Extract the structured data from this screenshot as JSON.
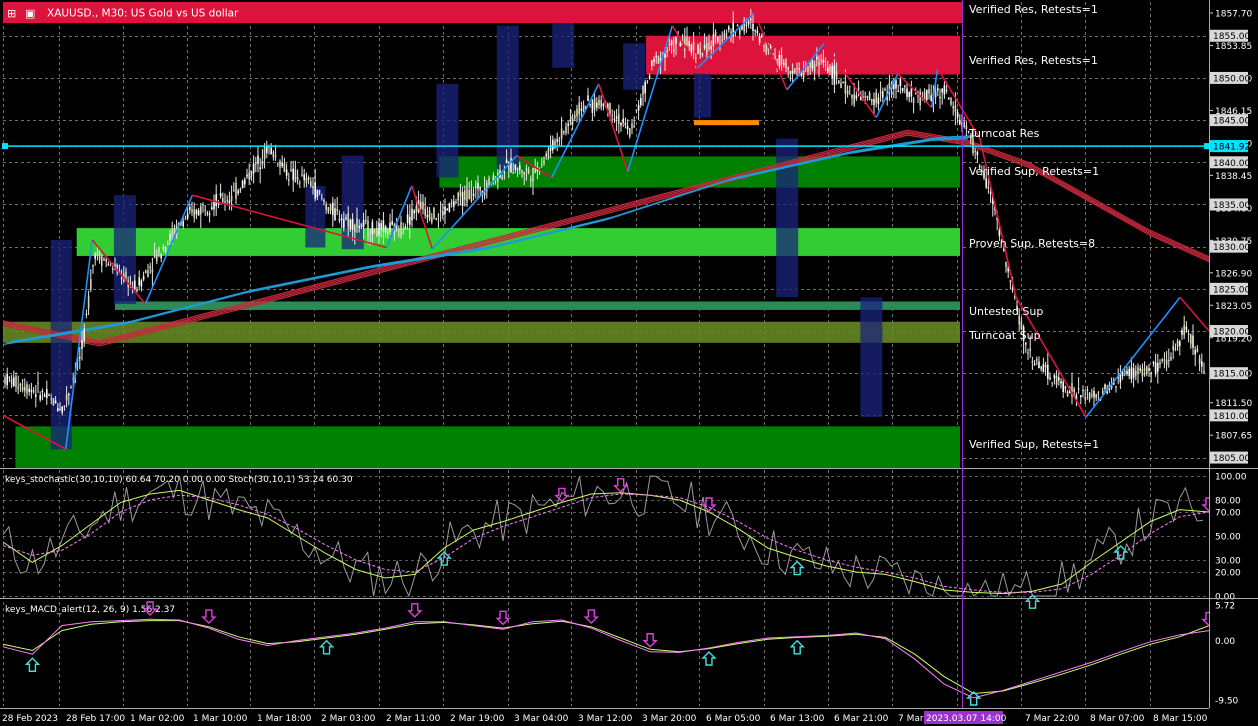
{
  "window": {
    "title": "XAUUSD., M30: US Gold vs US dollar"
  },
  "colors": {
    "background": "#000000",
    "grid": "#c8c8c8",
    "candle_up": "#ffffff",
    "candle_down": "#ffffff",
    "title_bar": "#dc143c",
    "zone_resistance": "#dc143c",
    "zone_support_dark": "#008000",
    "zone_support_light": "#32cd32",
    "zone_untested": "#2e8b57",
    "zone_turncoat_sup": "#6b8e23",
    "turncoat_res": "#ff8c00",
    "zigzag_up": "#1e90ff",
    "zigzag_down": "#dc143c",
    "ma_blue": "#1e9bd7",
    "ma_red": "#c8283c",
    "hline": "#00e5ff",
    "macd_line": "#ff80ff",
    "macd_signal": "#c8ff64",
    "arrow_up": "#40e0e0",
    "arrow_down": "#e040e0"
  },
  "chart_data": [
    {
      "type": "candlestick",
      "panel": "main",
      "symbol": "XAUUSD.",
      "timeframe": "M30",
      "ylim": [
        1804,
        1859
      ],
      "y_ticks": [
        "1857.70",
        "1853.85",
        "1850.00",
        "1846.15",
        "1842.30",
        "1838.45",
        "1834.60",
        "1830.75",
        "1826.90",
        "1823.05",
        "1819.20",
        "1815.00",
        "1811.50",
        "1807.65"
      ],
      "price_badges": [
        {
          "label": "1855.00",
          "value": 1855.0,
          "highlight": false
        },
        {
          "label": "1850.00",
          "value": 1850.0,
          "highlight": false
        },
        {
          "label": "1845.00",
          "value": 1845.0,
          "highlight": false
        },
        {
          "label": "1841.92",
          "value": 1841.92,
          "highlight": true
        },
        {
          "label": "1840.00",
          "value": 1840.0,
          "highlight": false
        },
        {
          "label": "1835.00",
          "value": 1835.0,
          "highlight": false
        },
        {
          "label": "1830.00",
          "value": 1830.0,
          "highlight": false
        },
        {
          "label": "1825.00",
          "value": 1825.0,
          "highlight": false
        },
        {
          "label": "1820.00",
          "value": 1820.0,
          "highlight": false
        },
        {
          "label": "1815.00",
          "value": 1815.0,
          "highlight": false
        },
        {
          "label": "1810.00",
          "value": 1810.0,
          "highlight": false
        },
        {
          "label": "1805.00",
          "value": 1805.0,
          "highlight": false
        }
      ],
      "horizontal_line": 1841.92,
      "zones": [
        {
          "label": "Verified Res, Retests=1",
          "kind": "resistance",
          "top": 1859,
          "bottom": 1856.8,
          "start": 0.0,
          "end": 1.0
        },
        {
          "label": "Verified Res, Retests=1",
          "kind": "resistance",
          "top": 1855.0,
          "bottom": 1850.4,
          "start": 0.672,
          "end": 1.0
        },
        {
          "label": "Turncoat Res",
          "kind": "turncoat_res",
          "top": 1845.0,
          "bottom": 1844.4,
          "start": 0.722,
          "end": 0.79
        },
        {
          "label": "Verified Sup, Retests=1",
          "kind": "support_dark",
          "top": 1840.7,
          "bottom": 1837.0,
          "start": 0.456,
          "end": 1.0
        },
        {
          "label": "Proven Sup, Retests=8",
          "kind": "support_light",
          "top": 1832.2,
          "bottom": 1828.9,
          "start": 0.077,
          "end": 1.0
        },
        {
          "label": "Untested Sup",
          "kind": "untested",
          "top": 1823.5,
          "bottom": 1822.5,
          "start": 0.117,
          "end": 1.0
        },
        {
          "label": "Turncoat Sup",
          "kind": "turncoat_sup",
          "top": 1821.1,
          "bottom": 1818.6,
          "start": 0.0,
          "end": 1.0
        },
        {
          "label": "Verified Sup, Retests=1",
          "kind": "support_dark",
          "top": 1808.7,
          "bottom": 1803.7,
          "start": 0.013,
          "end": 1.0
        }
      ],
      "zone_labels_visible": [
        "Verified Res, Retests=1",
        "Verified Res, Retests=1",
        "Turncoat Res",
        "Verified Sup, Retests=1",
        "Proven Sup, Retests=8",
        "Untested Sup",
        "Turncoat Sup",
        "Verified Sup, Retests=1"
      ],
      "zigzag": [
        [
          0.0,
          1810.0
        ],
        [
          0.052,
          1806.0
        ],
        [
          0.074,
          1830.8
        ],
        [
          0.118,
          1823.2
        ],
        [
          0.157,
          1836.1
        ],
        [
          0.318,
          1829.9
        ],
        [
          0.339,
          1837.2
        ],
        [
          0.356,
          1829.7
        ],
        [
          0.426,
          1840.8
        ],
        [
          0.455,
          1838.2
        ],
        [
          0.494,
          1849.3
        ],
        [
          0.518,
          1838.9
        ],
        [
          0.555,
          1856.2
        ],
        [
          0.576,
          1851.2
        ],
        [
          0.623,
          1857.7
        ],
        [
          0.65,
          1848.6
        ],
        [
          0.681,
          1854.1
        ],
        [
          0.724,
          1845.3
        ],
        [
          0.742,
          1850.5
        ],
        [
          0.77,
          1846.5
        ],
        [
          0.775,
          1851.1
        ],
        [
          0.81,
          1842.8
        ],
        [
          0.84,
          1824.0
        ],
        [
          0.898,
          1809.8
        ],
        [
          0.976,
          1824.0
        ],
        [
          1.0,
          1820.0
        ]
      ],
      "tick_clusters": [
        [
          0.0,
          1814.5
        ],
        [
          0.03,
          1812.8
        ],
        [
          0.05,
          1810.8
        ],
        [
          0.066,
          1818.0
        ],
        [
          0.076,
          1829.4
        ],
        [
          0.092,
          1827.5
        ],
        [
          0.11,
          1825.0
        ],
        [
          0.128,
          1829.0
        ],
        [
          0.15,
          1833.2
        ],
        [
          0.17,
          1835.0
        ],
        [
          0.19,
          1835.9
        ],
        [
          0.205,
          1838.7
        ],
        [
          0.22,
          1841.8
        ],
        [
          0.238,
          1838.5
        ],
        [
          0.255,
          1837.6
        ],
        [
          0.27,
          1834.5
        ],
        [
          0.29,
          1832.8
        ],
        [
          0.31,
          1831.9
        ],
        [
          0.33,
          1832.2
        ],
        [
          0.345,
          1835.0
        ],
        [
          0.36,
          1833.5
        ],
        [
          0.38,
          1835.8
        ],
        [
          0.4,
          1837.2
        ],
        [
          0.42,
          1839.6
        ],
        [
          0.44,
          1838.6
        ],
        [
          0.46,
          1842.8
        ],
        [
          0.48,
          1846.7
        ],
        [
          0.5,
          1847.0
        ],
        [
          0.52,
          1843.5
        ],
        [
          0.54,
          1852.0
        ],
        [
          0.56,
          1854.4
        ],
        [
          0.58,
          1853.0
        ],
        [
          0.6,
          1855.5
        ],
        [
          0.62,
          1856.3
        ],
        [
          0.64,
          1852.7
        ],
        [
          0.66,
          1850.5
        ],
        [
          0.68,
          1852.1
        ],
        [
          0.7,
          1848.4
        ],
        [
          0.72,
          1847.2
        ],
        [
          0.74,
          1849.0
        ],
        [
          0.76,
          1847.5
        ],
        [
          0.78,
          1848.7
        ],
        [
          0.8,
          1843.5
        ],
        [
          0.82,
          1836.0
        ],
        [
          0.835,
          1826.0
        ],
        [
          0.85,
          1817.5
        ],
        [
          0.87,
          1814.4
        ],
        [
          0.89,
          1812.5
        ],
        [
          0.91,
          1812.2
        ],
        [
          0.93,
          1815.0
        ],
        [
          0.95,
          1815.3
        ],
        [
          0.965,
          1816.0
        ],
        [
          0.98,
          1820.5
        ],
        [
          1.0,
          1814.5
        ]
      ],
      "ma_blue": [
        [
          0.0,
          1818.4
        ],
        [
          0.1,
          1820.8
        ],
        [
          0.2,
          1824.5
        ],
        [
          0.3,
          1827.4
        ],
        [
          0.4,
          1829.7
        ],
        [
          0.5,
          1833.2
        ],
        [
          0.6,
          1837.8
        ],
        [
          0.7,
          1841.0
        ],
        [
          0.77,
          1842.6
        ],
        [
          0.8,
          1842.8
        ]
      ],
      "ma_red": [
        [
          0.0,
          1821.2
        ],
        [
          0.08,
          1818.8
        ],
        [
          0.75,
          1843.8
        ],
        [
          0.8,
          1842.6
        ],
        [
          0.85,
          1840.0
        ],
        [
          0.9,
          1836.0
        ],
        [
          0.95,
          1832.0
        ],
        [
          1.0,
          1828.8
        ]
      ],
      "indicators_visible": [
        {
          "label": "Verified Res, Retests=1"
        },
        {
          "label": "Verified Res, Retests=1"
        }
      ]
    },
    {
      "type": "line",
      "panel": "stochastic",
      "title": "keys_stochastic(30,10,10) 60.64 70.20 0.00 0.00 Stoch(30,10,1) 53.24 60.30",
      "ylim": [
        0,
        105
      ],
      "y_ticks": [
        "100.00",
        "80.00",
        "70.00",
        "50.00",
        "30.00",
        "20.00",
        "0.00"
      ],
      "series": [
        {
          "name": "main",
          "values": [
            45,
            28,
            42,
            60,
            78,
            85,
            88,
            80,
            72,
            65,
            50,
            35,
            22,
            15,
            18,
            40,
            55,
            62,
            70,
            78,
            85,
            86,
            84,
            80,
            70,
            56,
            40,
            32,
            25,
            20,
            18,
            12,
            5,
            3,
            2,
            4,
            10,
            28,
            45,
            62,
            72,
            70
          ]
        },
        {
          "name": "signal",
          "values": [
            42,
            34,
            38,
            52,
            70,
            80,
            84,
            82,
            76,
            68,
            56,
            42,
            30,
            22,
            20,
            32,
            48,
            58,
            66,
            74,
            82,
            85,
            84,
            82,
            74,
            62,
            48,
            38,
            30,
            24,
            20,
            15,
            8,
            5,
            3,
            3,
            6,
            18,
            34,
            52,
            66,
            70
          ]
        }
      ],
      "markers": [
        {
          "index": 15,
          "dir": "up"
        },
        {
          "index": 19,
          "dir": "down"
        },
        {
          "index": 21,
          "dir": "down"
        },
        {
          "index": 24,
          "dir": "down"
        },
        {
          "index": 27,
          "dir": "up"
        },
        {
          "index": 35,
          "dir": "up"
        },
        {
          "index": 38,
          "dir": "up"
        },
        {
          "index": 41,
          "dir": "down"
        }
      ]
    },
    {
      "type": "line",
      "panel": "macd",
      "title": "keys_MACD_alert(12, 26, 9) 1.56 2.37",
      "ylim": [
        -10.5,
        6.5
      ],
      "y_ticks": [
        "5.72",
        "0.00",
        "-9.50"
      ],
      "series": [
        {
          "name": "macd",
          "values": [
            -1.0,
            -2.2,
            2.4,
            3.0,
            3.2,
            3.4,
            3.3,
            2.0,
            0.2,
            -0.8,
            0.0,
            0.6,
            1.2,
            2.0,
            3.0,
            3.0,
            2.4,
            1.8,
            3.0,
            3.3,
            2.0,
            0.0,
            -1.8,
            -1.9,
            -1.2,
            -0.3,
            0.4,
            0.6,
            0.8,
            1.2,
            0.3,
            -3.0,
            -7.0,
            -9.2,
            -8.0,
            -6.5,
            -5.0,
            -3.5,
            -1.8,
            -0.2,
            0.9,
            1.6
          ]
        },
        {
          "name": "signal",
          "values": [
            -0.6,
            -1.6,
            1.6,
            2.6,
            3.0,
            3.2,
            3.2,
            2.2,
            0.6,
            -0.5,
            -0.2,
            0.4,
            1.0,
            1.8,
            2.7,
            2.9,
            2.5,
            2.0,
            2.7,
            3.1,
            2.2,
            0.4,
            -1.4,
            -1.8,
            -1.3,
            -0.5,
            0.2,
            0.5,
            0.7,
            1.0,
            0.5,
            -2.2,
            -5.8,
            -8.5,
            -8.1,
            -6.8,
            -5.4,
            -3.9,
            -2.2,
            -0.6,
            0.6,
            2.4
          ]
        }
      ],
      "markers": [
        {
          "index": 1,
          "dir": "up"
        },
        {
          "index": 5,
          "dir": "down"
        },
        {
          "index": 7,
          "dir": "down"
        },
        {
          "index": 11,
          "dir": "up"
        },
        {
          "index": 14,
          "dir": "down"
        },
        {
          "index": 17,
          "dir": "down"
        },
        {
          "index": 20,
          "dir": "down"
        },
        {
          "index": 22,
          "dir": "down"
        },
        {
          "index": 24,
          "dir": "up"
        },
        {
          "index": 27,
          "dir": "up"
        },
        {
          "index": 33,
          "dir": "up"
        },
        {
          "index": 41,
          "dir": "down"
        }
      ]
    }
  ],
  "x_axis": {
    "labels": [
      "28 Feb 2023",
      "28 Feb 17:00",
      "1 Mar 02:00",
      "1 Mar 10:00",
      "1 Mar 18:00",
      "2 Mar 03:00",
      "2 Mar 11:00",
      "2 Mar 19:00",
      "3 Mar 04:00",
      "3 Mar 12:00",
      "3 Mar 20:00",
      "6 Mar 05:00",
      "6 Mar 13:00",
      "6 Mar 21:00",
      "7 Mar",
      "7 Mar 22:00",
      "8 Mar 07:00",
      "8 Mar 15:00"
    ],
    "cursor_label": "2023.03.07 14:00"
  }
}
